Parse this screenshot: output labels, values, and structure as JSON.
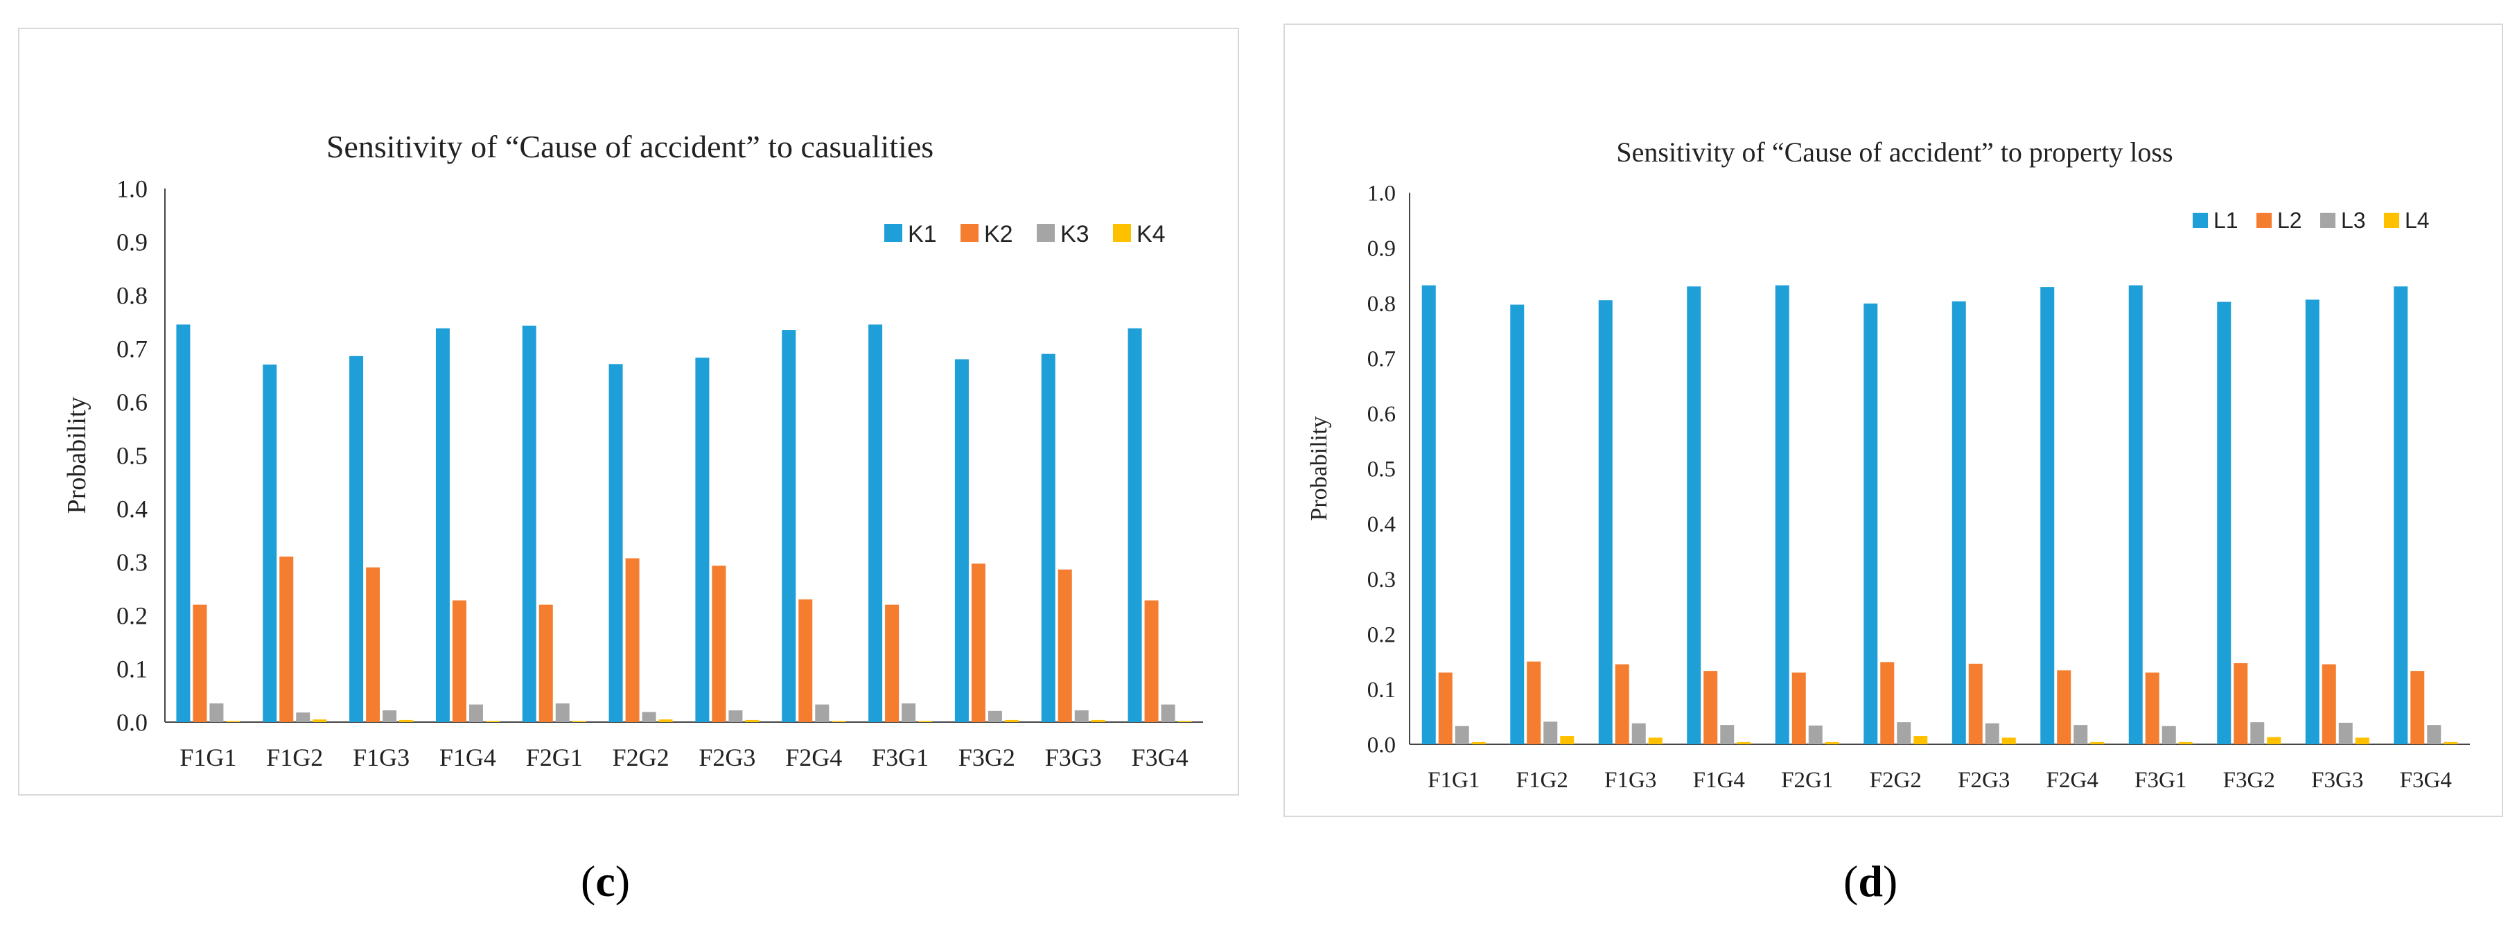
{
  "chart_data": [
    {
      "type": "bar",
      "title": "Sensitivity of “Cause of accident” to casualities",
      "xlabel": "",
      "ylabel": "Probability",
      "ylim": [
        0,
        1.0
      ],
      "yticks": [
        "0.0",
        "0.1",
        "0.2",
        "0.3",
        "0.4",
        "0.5",
        "0.6",
        "0.7",
        "0.8",
        "0.9",
        "1.0"
      ],
      "legend_position": "top-right",
      "categories": [
        "F1G1",
        "F1G2",
        "F1G3",
        "F1G4",
        "F2G1",
        "F2G2",
        "F2G3",
        "F2G4",
        "F3G1",
        "F3G2",
        "F3G3",
        "F3G4"
      ],
      "series": [
        {
          "name": "K1",
          "color": "#1f9fd8",
          "values": [
            0.745,
            0.67,
            0.686,
            0.738,
            0.743,
            0.671,
            0.683,
            0.735,
            0.745,
            0.68,
            0.69,
            0.738
          ]
        },
        {
          "name": "K2",
          "color": "#f47d2f",
          "values": [
            0.22,
            0.31,
            0.29,
            0.228,
            0.22,
            0.307,
            0.293,
            0.23,
            0.22,
            0.297,
            0.286,
            0.228
          ]
        },
        {
          "name": "K3",
          "color": "#a5a5a5",
          "values": [
            0.035,
            0.018,
            0.022,
            0.033,
            0.035,
            0.019,
            0.022,
            0.033,
            0.035,
            0.021,
            0.022,
            0.033
          ]
        },
        {
          "name": "K4",
          "color": "#ffc000",
          "values": [
            0.002,
            0.005,
            0.004,
            0.002,
            0.002,
            0.005,
            0.004,
            0.002,
            0.002,
            0.004,
            0.004,
            0.002
          ]
        }
      ]
    },
    {
      "type": "bar",
      "title": "Sensitivity of “Cause of accident” to property loss",
      "xlabel": "",
      "ylabel": "Probability",
      "ylim": [
        0,
        1.0
      ],
      "yticks": [
        "0.0",
        "0.1",
        "0.2",
        "0.3",
        "0.4",
        "0.5",
        "0.6",
        "0.7",
        "0.8",
        "0.9",
        "1.0"
      ],
      "legend_position": "top-right",
      "categories": [
        "F1G1",
        "F1G2",
        "F1G3",
        "F1G4",
        "F2G1",
        "F2G2",
        "F2G3",
        "F2G4",
        "F3G1",
        "F3G2",
        "F3G3",
        "F3G4"
      ],
      "series": [
        {
          "name": "L1",
          "color": "#1f9fd8",
          "values": [
            0.832,
            0.797,
            0.805,
            0.83,
            0.832,
            0.799,
            0.803,
            0.829,
            0.832,
            0.802,
            0.806,
            0.83
          ]
        },
        {
          "name": "L2",
          "color": "#f47d2f",
          "values": [
            0.13,
            0.15,
            0.145,
            0.133,
            0.13,
            0.149,
            0.146,
            0.134,
            0.13,
            0.147,
            0.145,
            0.133
          ]
        },
        {
          "name": "L3",
          "color": "#a5a5a5",
          "values": [
            0.033,
            0.041,
            0.038,
            0.035,
            0.034,
            0.04,
            0.038,
            0.035,
            0.033,
            0.04,
            0.039,
            0.035
          ]
        },
        {
          "name": "L4",
          "color": "#ffc000",
          "values": [
            0.004,
            0.015,
            0.012,
            0.004,
            0.004,
            0.015,
            0.012,
            0.004,
            0.004,
            0.013,
            0.012,
            0.004
          ]
        }
      ]
    }
  ],
  "captions": {
    "c": {
      "open": "(",
      "letter": "c",
      "close": ")"
    },
    "d": {
      "open": "(",
      "letter": "d",
      "close": ")"
    }
  }
}
